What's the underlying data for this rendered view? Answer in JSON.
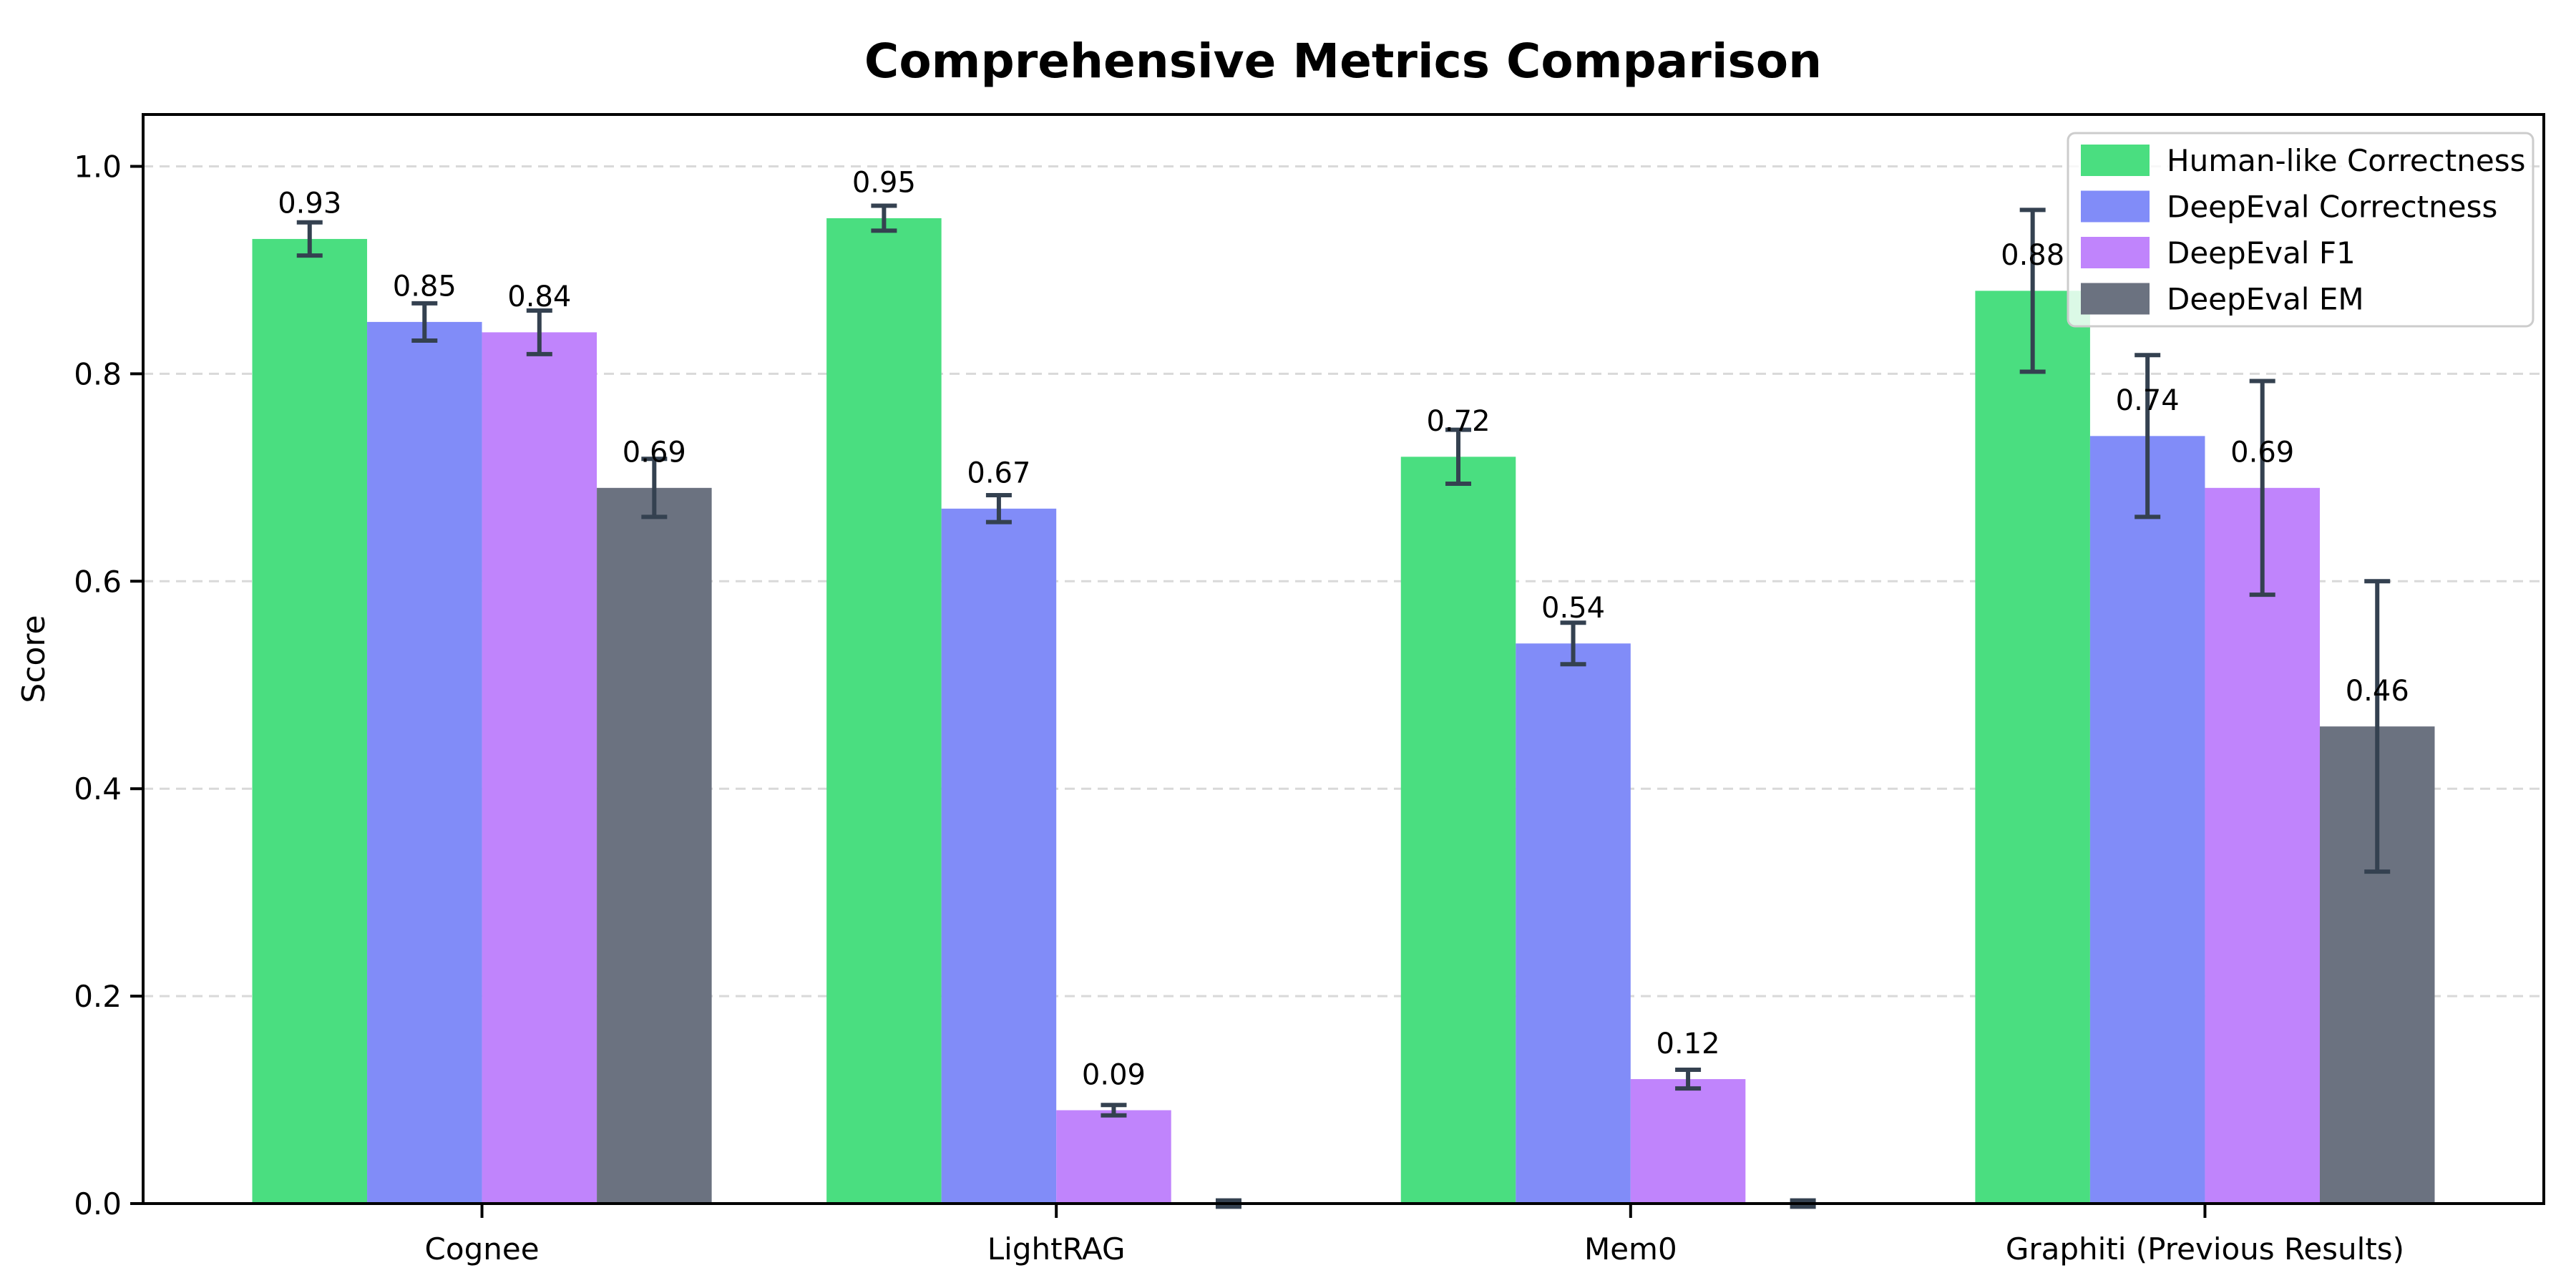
{
  "figure": {
    "title": "Comprehensive Metrics Comparison"
  },
  "chart_data": {
    "type": "bar",
    "title": "Comprehensive Metrics Comparison",
    "xlabel": "",
    "ylabel": "Score",
    "categories": [
      "Cognee",
      "LightRAG",
      "Mem0",
      "Graphiti (Previous Results)"
    ],
    "series": [
      {
        "name": "Human-like Correctness",
        "color": "#4ade80",
        "values": [
          0.93,
          0.95,
          0.72,
          0.88
        ],
        "errors": [
          0.016,
          0.012,
          0.026,
          0.078
        ]
      },
      {
        "name": "DeepEval Correctness",
        "color": "#818cf8",
        "values": [
          0.85,
          0.67,
          0.54,
          0.74
        ],
        "errors": [
          0.018,
          0.013,
          0.02,
          0.078
        ]
      },
      {
        "name": "DeepEval F1",
        "color": "#c084fc",
        "values": [
          0.84,
          0.09,
          0.12,
          0.69
        ],
        "errors": [
          0.021,
          0.005,
          0.009,
          0.103
        ]
      },
      {
        "name": "DeepEval EM",
        "color": "#6b7280",
        "values": [
          0.69,
          0.0,
          0.0,
          0.46
        ],
        "errors": [
          0.028,
          0.003,
          0.003,
          0.14
        ]
      }
    ],
    "value_label_format": "2-decimals",
    "hide_zero_value_labels": true,
    "yticks": [
      0.0,
      0.2,
      0.4,
      0.6,
      0.8,
      1.0
    ],
    "ylim": [
      0,
      1.05
    ],
    "xlim": [
      -0.59,
      3.59
    ],
    "bar_width": 0.2,
    "grid": "horizontal-dashed",
    "grid_color": "#d9d9d9",
    "error_bar_color": "#344150",
    "legend_position": "upper-right",
    "legend_border_color": "#cccccc",
    "background_color": "#ffffff",
    "spine_color": "#000000"
  }
}
